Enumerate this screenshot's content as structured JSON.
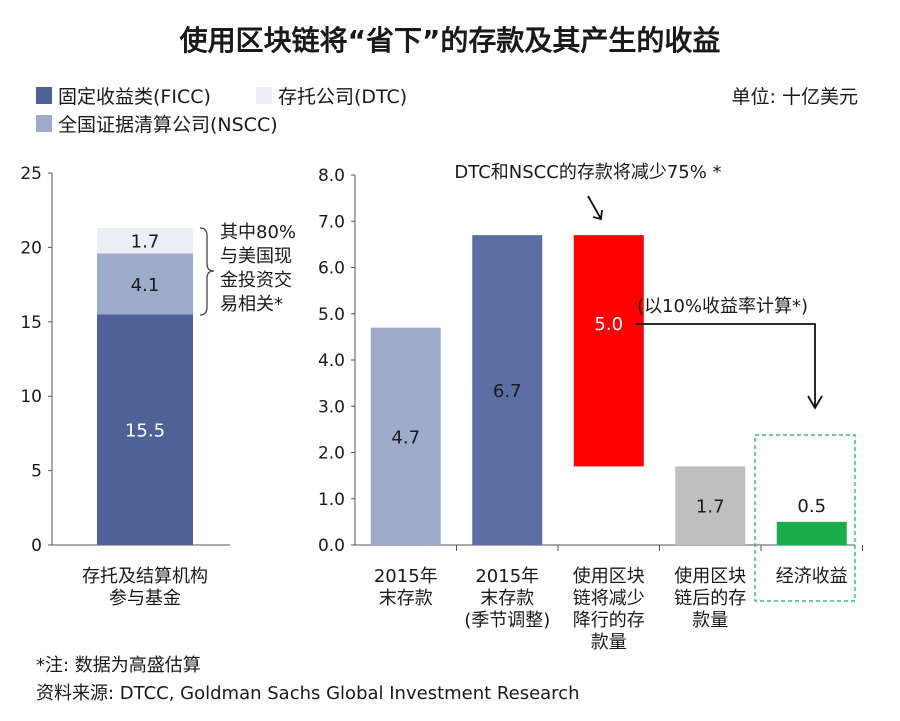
{
  "title": "使用区块链将“省下”的存款及其产生的收益",
  "unit": "单位: 十亿美元",
  "legend": [
    {
      "label": "固定收益类(FICC)",
      "color": "#4f6296"
    },
    {
      "label": "存托公司(DTC)",
      "color": "#eceef5"
    },
    {
      "label": "全国证据清算公司(NSCC)",
      "color": "#9eabcb"
    }
  ],
  "chart_data": [
    {
      "type": "bar",
      "stacked": true,
      "categories": [
        "存托及结算机构参与基金"
      ],
      "category_lines": [
        [
          "存托及结算机构",
          "参与基金"
        ]
      ],
      "series": [
        {
          "name": "固定收益类(FICC)",
          "values": [
            15.5
          ],
          "labels": [
            "15.5"
          ],
          "color": "#4f6296"
        },
        {
          "name": "全国证据清算公司(NSCC)",
          "values": [
            4.1
          ],
          "labels": [
            "4.1"
          ],
          "color": "#9eabcb"
        },
        {
          "name": "存托公司(DTC)",
          "values": [
            1.7
          ],
          "labels": [
            "1.7"
          ],
          "color": "#eceef5"
        }
      ],
      "ylim": [
        0,
        25
      ],
      "yticks": [
        "0",
        "5",
        "10",
        "15",
        "20",
        "25"
      ],
      "annotation": [
        "其中80%",
        "与美国现",
        "金投资交",
        "易相关*"
      ]
    },
    {
      "type": "bar",
      "waterfall": true,
      "categories": [
        "2015年末存款",
        "2015年末存款(季节调整)",
        "使用区块链将减少降行的存款量",
        "使用区块链后的存款量",
        "经济收益"
      ],
      "category_lines": [
        [
          "2015年",
          "末存款"
        ],
        [
          "2015年",
          "末存款",
          "(季节调整)"
        ],
        [
          "使用区块",
          "链将减少",
          "降行的存",
          "款量"
        ],
        [
          "使用区块",
          "链后的存",
          "款量"
        ],
        [
          "经济收益"
        ]
      ],
      "bars": [
        {
          "base": 0,
          "value": 4.7,
          "label": "4.7",
          "color": "#9eabcb"
        },
        {
          "base": 0,
          "value": 6.7,
          "label": "6.7",
          "color": "#5b6ea3"
        },
        {
          "base": 1.7,
          "value": 5.0,
          "label": "5.0",
          "color": "#ff0000"
        },
        {
          "base": 0,
          "value": 1.7,
          "label": "1.7",
          "color": "#bfbfbf"
        },
        {
          "base": 0,
          "value": 0.5,
          "label": "0.5",
          "color": "#1aae4d"
        }
      ],
      "ylim": [
        0,
        8
      ],
      "yticks": [
        "0.0",
        "1.0",
        "2.0",
        "3.0",
        "4.0",
        "5.0",
        "6.0",
        "7.0",
        "8.0"
      ],
      "annotations": {
        "reduction": "DTC和NSCC的存款将减少75% *",
        "rate": "(以10%收益率计算*)"
      }
    }
  ],
  "footnotes": {
    "note": "*注: 数据为高盛估算",
    "source": "资料来源: DTCC, Goldman Sachs Global Investment Research"
  }
}
